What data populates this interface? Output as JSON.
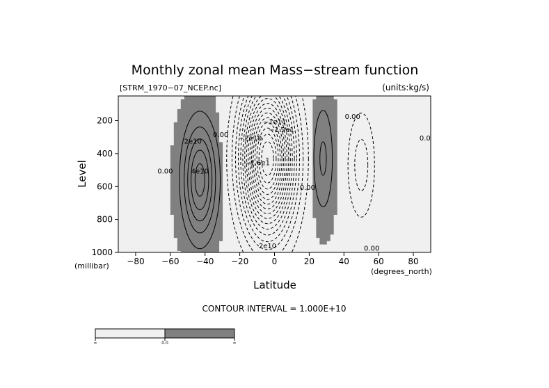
{
  "chart_data": {
    "type": "contour",
    "title": "Monthly zonal mean Mass−stream function",
    "file_label": "[STRM_1970−07_NCEP.nc]",
    "units_label": "(units:kg/s)",
    "xlabel": "Latitude",
    "x_unit_label": "(degrees_north)",
    "ylabel": "Level",
    "y_unit_label": "(millibar)",
    "xlim": [
      -90,
      90
    ],
    "ylim": [
      1000,
      50
    ],
    "x_ticks": [
      -80,
      -60,
      -40,
      -20,
      0,
      20,
      40,
      60,
      80
    ],
    "y_ticks": [
      200,
      400,
      600,
      800,
      1000
    ],
    "contour_interval_text": "CONTOUR INTERVAL = 1.000E+10",
    "shading_colors": {
      "negative": "#f0f0f0",
      "positive": "#808080"
    },
    "colorbar": {
      "labels": [
        "∞",
        "0.0",
        "∞"
      ]
    },
    "contour_labels": [
      {
        "text": "2e10",
        "lat": -47,
        "lev": 340
      },
      {
        "text": "4e10",
        "lat": -43,
        "lev": 520
      },
      {
        "text": "0.00",
        "lat": -63,
        "lev": 520
      },
      {
        "text": "0.00",
        "lat": -31,
        "lev": 300
      },
      {
        "text": "-2e10",
        "lat": -14,
        "lev": 320
      },
      {
        "text": "-1.6e1",
        "lat": -10,
        "lev": 470
      },
      {
        "text": "-1e11",
        "lat": 0,
        "lev": 220
      },
      {
        "text": "-1.2e1",
        "lat": 4,
        "lev": 270
      },
      {
        "text": "0.00",
        "lat": 19,
        "lev": 620
      },
      {
        "text": "0.00",
        "lat": 45,
        "lev": 190
      },
      {
        "text": "0.00",
        "lat": 88,
        "lev": 320
      },
      {
        "text": "0.00",
        "lat": 56,
        "lev": 990
      },
      {
        "text": "2e10",
        "lat": -4,
        "lev": 975
      }
    ]
  }
}
